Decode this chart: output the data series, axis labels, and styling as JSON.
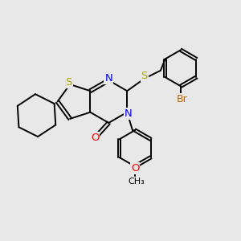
{
  "bg_color": "#e8e8e8",
  "bond_color": "black",
  "S_color": "#aaaa00",
  "N_color": "blue",
  "O_color": "red",
  "Br_color": "#bb6600",
  "bond_width": 1.4,
  "fig_size": [
    3.0,
    3.0
  ],
  "dpi": 100,
  "xlim": [
    0,
    10
  ],
  "ylim": [
    0,
    10
  ]
}
